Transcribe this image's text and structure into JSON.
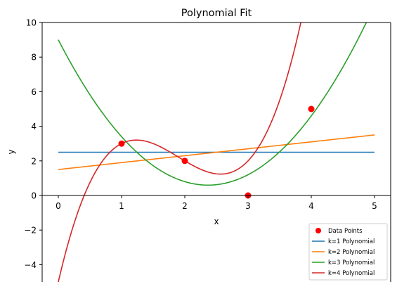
{
  "chart_data": {
    "type": "line",
    "title": "Polynomial Fit",
    "xlabel": "x",
    "ylabel": "y",
    "xlim": [
      -0.25,
      5.25
    ],
    "ylim": [
      -5,
      10
    ],
    "xticks": [
      0,
      1,
      2,
      3,
      4,
      5
    ],
    "yticks": [
      -4,
      -2,
      0,
      2,
      4,
      6,
      8,
      10
    ],
    "ytick_labels": [
      "−4",
      "−2",
      "0",
      "2",
      "4",
      "6",
      "8",
      "10"
    ],
    "grid": false,
    "legend_position": "bottom-right",
    "points": {
      "name": "Data Points",
      "color": "#ff0000",
      "x": [
        1,
        2,
        3,
        4
      ],
      "y": [
        3,
        2,
        0,
        5
      ]
    },
    "series": [
      {
        "name": "k=1 Polynomial",
        "color": "#1f77b4",
        "coefficients": [
          2.5
        ],
        "x_range": [
          0,
          5
        ]
      },
      {
        "name": "k=2 Polynomial",
        "color": "#ff7f0e",
        "coefficients": [
          1.5,
          0.4
        ],
        "x_range": [
          0,
          5
        ]
      },
      {
        "name": "k=3 Polynomial",
        "color": "#2ca02c",
        "coefficients": [
          9,
          -7.1,
          1.5
        ],
        "x_range": [
          0,
          5
        ]
      },
      {
        "name": "k=4 Polynomial",
        "color": "#d62728",
        "coefficients": [
          -5,
          15.8333,
          -9.5,
          1.6667
        ],
        "x_range": [
          0,
          5
        ]
      }
    ]
  }
}
